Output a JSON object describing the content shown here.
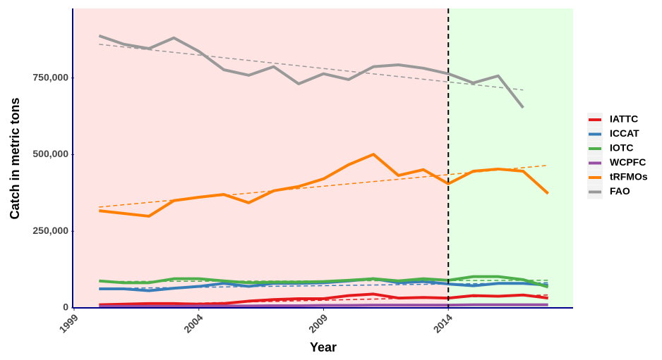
{
  "chart_data": {
    "type": "line",
    "xlabel": "Year",
    "ylabel": "Catch in metric tons",
    "x": [
      2000,
      2001,
      2002,
      2003,
      2004,
      2005,
      2006,
      2007,
      2008,
      2009,
      2010,
      2011,
      2012,
      2013,
      2014,
      2015,
      2016,
      2017,
      2018
    ],
    "xlim": [
      1999,
      2019
    ],
    "xticks": [
      1999,
      2004,
      2009,
      2014
    ],
    "ylim": [
      0,
      977000
    ],
    "yticks": [
      0,
      {
        "value": 250000,
        "label": "250,000"
      },
      {
        "value": 500000,
        "label": "500,000"
      },
      {
        "value": 750000,
        "label": "750,000"
      }
    ],
    "regions": [
      {
        "xlim": [
          1999,
          2014
        ],
        "color": "#ffe4e4"
      },
      {
        "xlim": [
          2014,
          2019
        ],
        "color": "#e4ffe4"
      }
    ],
    "vline": 2014,
    "series": [
      {
        "name": "IATTC",
        "color": "#e41a1c",
        "values": [
          10000,
          12000,
          14000,
          14000,
          12000,
          14000,
          22000,
          27000,
          30000,
          30000,
          40000,
          45000,
          32000,
          34000,
          32000,
          40000,
          38000,
          42000,
          32000
        ],
        "trend": [
          8000,
          42000
        ]
      },
      {
        "name": "ICCAT",
        "color": "#377eb8",
        "values": [
          62000,
          62000,
          56000,
          64000,
          70000,
          80000,
          70000,
          80000,
          80000,
          82000,
          88000,
          95000,
          82000,
          86000,
          78000,
          72000,
          80000,
          80000,
          74000
        ],
        "trend": [
          63000,
          82000
        ]
      },
      {
        "name": "IOTC",
        "color": "#4daf4a",
        "values": [
          88000,
          82000,
          82000,
          95000,
          95000,
          88000,
          82000,
          84000,
          84000,
          86000,
          90000,
          95000,
          88000,
          95000,
          90000,
          102000,
          102000,
          92000,
          68000
        ],
        "trend": [
          86000,
          90000
        ]
      },
      {
        "name": "WCPFC",
        "color": "#984ea3",
        "values": [
          5000,
          5000,
          5000,
          5000,
          6000,
          6000,
          6000,
          7000,
          7000,
          8000,
          8000,
          9000,
          9000,
          9000,
          9000,
          10000,
          10000,
          10000,
          10000
        ],
        "trend": [
          4000,
          12000
        ]
      },
      {
        "name": "tRFMOs",
        "color": "#ff7f00",
        "values": [
          317000,
          308000,
          299000,
          350000,
          361000,
          370000,
          343000,
          382000,
          396000,
          421000,
          467000,
          501000,
          432000,
          451000,
          405000,
          446000,
          453000,
          446000,
          373000
        ],
        "trend": [
          329000,
          465000
        ]
      },
      {
        "name": "FAO",
        "color": "#999999",
        "values": [
          888000,
          860000,
          846000,
          881000,
          837000,
          777000,
          759000,
          787000,
          731000,
          764000,
          745000,
          787000,
          793000,
          782000,
          764000,
          734000,
          757000,
          653000,
          null
        ],
        "trend": [
          860000,
          711000
        ]
      }
    ]
  }
}
